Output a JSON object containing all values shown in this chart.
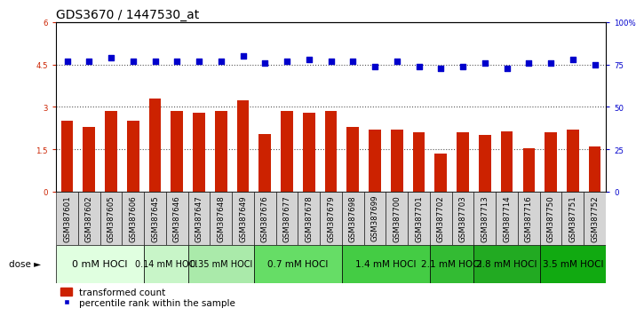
{
  "title": "GDS3670 / 1447530_at",
  "samples": [
    "GSM387601",
    "GSM387602",
    "GSM387605",
    "GSM387606",
    "GSM387645",
    "GSM387646",
    "GSM387647",
    "GSM387648",
    "GSM387649",
    "GSM387676",
    "GSM387677",
    "GSM387678",
    "GSM387679",
    "GSM387698",
    "GSM387699",
    "GSM387700",
    "GSM387701",
    "GSM387702",
    "GSM387703",
    "GSM387713",
    "GSM387714",
    "GSM387716",
    "GSM387750",
    "GSM387751",
    "GSM387752"
  ],
  "bar_values": [
    2.5,
    2.3,
    2.85,
    2.5,
    3.3,
    2.85,
    2.8,
    2.85,
    3.25,
    2.05,
    2.85,
    2.8,
    2.85,
    2.3,
    2.2,
    2.2,
    2.1,
    1.35,
    2.1,
    2.0,
    2.15,
    1.55,
    2.1,
    2.2,
    1.6
  ],
  "scatter_pct": [
    77,
    77,
    79,
    77,
    77,
    77,
    77,
    77,
    80,
    76,
    77,
    78,
    77,
    77,
    74,
    77,
    74,
    73,
    74,
    76,
    73,
    76,
    76,
    78,
    75
  ],
  "dose_groups": [
    {
      "label": "0 mM HOCl",
      "start": 0,
      "end": 4,
      "color": "#e0ffe0",
      "fontsize": 8
    },
    {
      "label": "0.14 mM HOCl",
      "start": 4,
      "end": 6,
      "color": "#c8f5c8",
      "fontsize": 7
    },
    {
      "label": "0.35 mM HOCl",
      "start": 6,
      "end": 9,
      "color": "#aaeaaa",
      "fontsize": 7
    },
    {
      "label": "0.7 mM HOCl",
      "start": 9,
      "end": 13,
      "color": "#66dd66",
      "fontsize": 7.5
    },
    {
      "label": "1.4 mM HOCl",
      "start": 13,
      "end": 17,
      "color": "#44cc44",
      "fontsize": 7.5
    },
    {
      "label": "2.1 mM HOCl",
      "start": 17,
      "end": 19,
      "color": "#33bb33",
      "fontsize": 7.5
    },
    {
      "label": "2.8 mM HOCl",
      "start": 19,
      "end": 22,
      "color": "#22aa22",
      "fontsize": 7.5
    },
    {
      "label": "3.5 mM HOCl",
      "start": 22,
      "end": 25,
      "color": "#11aa11",
      "fontsize": 7.5
    }
  ],
  "ylim_left": [
    0,
    6
  ],
  "ylim_right": [
    0,
    100
  ],
  "yticks_left": [
    0,
    1.5,
    3.0,
    4.5,
    6.0
  ],
  "ytick_labels_left": [
    "0",
    "1.5",
    "3",
    "4.5",
    "6"
  ],
  "yticks_right": [
    0,
    25,
    50,
    75,
    100
  ],
  "ytick_labels_right": [
    "0",
    "25",
    "50",
    "75",
    "100%"
  ],
  "bar_color": "#cc2200",
  "scatter_color": "#0000cc",
  "dotted_line_color": "#555555",
  "grid_values": [
    1.5,
    3.0,
    4.5
  ],
  "legend_bar": "transformed count",
  "legend_scatter": "percentile rank within the sample",
  "title_fontsize": 10,
  "tick_fontsize": 6.2,
  "sample_bg_color": "#d4d4d4"
}
